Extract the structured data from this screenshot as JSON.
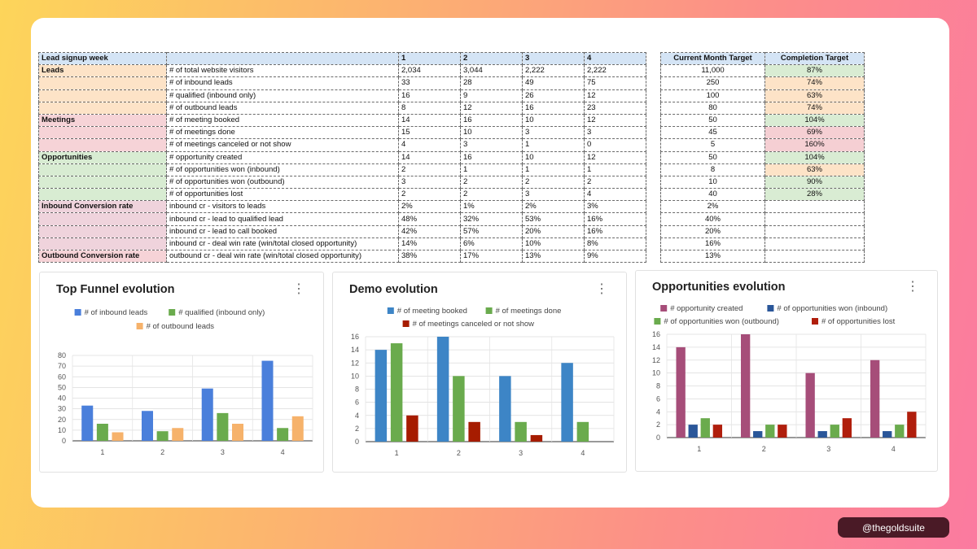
{
  "table": {
    "header": [
      "Lead signup week",
      "",
      "1",
      "2",
      "3",
      "4"
    ],
    "rows": [
      {
        "group": "Leads",
        "metric": "# of total website visitors",
        "w": [
          "2,034",
          "3,044",
          "2,222",
          "2,222"
        ]
      },
      {
        "group": "",
        "metric": "# of inbound leads",
        "w": [
          "33",
          "28",
          "49",
          "75"
        ]
      },
      {
        "group": "",
        "metric": "# qualified (inbound only)",
        "w": [
          "16",
          "9",
          "26",
          "12"
        ]
      },
      {
        "group": "",
        "metric": "# of outbound leads",
        "w": [
          "8",
          "12",
          "16",
          "23"
        ]
      },
      {
        "group": "Meetings",
        "metric": "# of meeting booked",
        "w": [
          "14",
          "16",
          "10",
          "12"
        ]
      },
      {
        "group": "",
        "metric": "# of meetings done",
        "w": [
          "15",
          "10",
          "3",
          "3"
        ]
      },
      {
        "group": "",
        "metric": "# of meetings canceled or not show",
        "w": [
          "4",
          "3",
          "1",
          "0"
        ]
      },
      {
        "group": "Opportunities",
        "metric": "# opportunity created",
        "w": [
          "14",
          "16",
          "10",
          "12"
        ]
      },
      {
        "group": "",
        "metric": "# of opportunities won (inbound)",
        "w": [
          "2",
          "1",
          "1",
          "1"
        ]
      },
      {
        "group": "",
        "metric": "# of opportunities won (outbound)",
        "w": [
          "3",
          "2",
          "2",
          "2"
        ]
      },
      {
        "group": "",
        "metric": "# of opportunities lost",
        "w": [
          "2",
          "2",
          "3",
          "4"
        ]
      },
      {
        "group": "Inbound Conversion rate",
        "metric": "inbound cr - visitors to leads",
        "w": [
          "2%",
          "1%",
          "2%",
          "3%"
        ]
      },
      {
        "group": "",
        "metric": "inbound cr - lead to qualified lead",
        "w": [
          "48%",
          "32%",
          "53%",
          "16%"
        ]
      },
      {
        "group": "",
        "metric": "inbound cr - lead to call booked",
        "w": [
          "42%",
          "57%",
          "20%",
          "16%"
        ]
      },
      {
        "group": "",
        "metric": "inbound cr - deal win rate (win/total closed opportunity)",
        "w": [
          "14%",
          "6%",
          "10%",
          "8%"
        ]
      },
      {
        "group": "Outbound Conversion rate",
        "metric": "outbound cr - deal win rate (win/total closed opportunity)",
        "w": [
          "38%",
          "17%",
          "13%",
          "9%"
        ]
      }
    ]
  },
  "targets": {
    "header": [
      "Current Month Target",
      "Completion Target"
    ],
    "rows": [
      {
        "target": "11,000",
        "completion": "87%"
      },
      {
        "target": "250",
        "completion": "74%"
      },
      {
        "target": "100",
        "completion": "63%"
      },
      {
        "target": "80",
        "completion": "74%"
      },
      {
        "target": "50",
        "completion": "104%"
      },
      {
        "target": "45",
        "completion": "69%"
      },
      {
        "target": "5",
        "completion": "160%"
      },
      {
        "target": "50",
        "completion": "104%"
      },
      {
        "target": "8",
        "completion": "63%"
      },
      {
        "target": "10",
        "completion": "90%"
      },
      {
        "target": "40",
        "completion": "28%"
      },
      {
        "target": "2%",
        "completion": ""
      },
      {
        "target": "40%",
        "completion": ""
      },
      {
        "target": "20%",
        "completion": ""
      },
      {
        "target": "16%",
        "completion": ""
      },
      {
        "target": "13%",
        "completion": ""
      }
    ]
  },
  "colors": {
    "blue": "#4a7fdb",
    "green": "#6aab4d",
    "orange": "#f6b26b",
    "blue2": "#3d85c6",
    "red": "#a61c00",
    "magenta": "#a64d79",
    "navy": "#2a5699",
    "brightred": "#b01e0c"
  },
  "chart_data": [
    {
      "type": "bar",
      "title": "Top Funnel evolution",
      "categories": [
        "1",
        "2",
        "3",
        "4"
      ],
      "ylim": [
        0,
        80
      ],
      "yticks": [
        0,
        10,
        20,
        30,
        40,
        50,
        60,
        70,
        80
      ],
      "series": [
        {
          "name": "# of inbound leads",
          "values": [
            33,
            28,
            49,
            75
          ],
          "color": "#4a7fdb"
        },
        {
          "name": "# qualified (inbound only)",
          "values": [
            16,
            9,
            26,
            12
          ],
          "color": "#6aab4d"
        },
        {
          "name": "# of outbound leads",
          "values": [
            8,
            12,
            16,
            23
          ],
          "color": "#f6b26b"
        }
      ]
    },
    {
      "type": "bar",
      "title": "Demo evolution",
      "categories": [
        "1",
        "2",
        "3",
        "4"
      ],
      "ylim": [
        0,
        16
      ],
      "yticks": [
        0,
        2,
        4,
        6,
        8,
        10,
        12,
        14,
        16
      ],
      "series": [
        {
          "name": "# of meeting booked",
          "values": [
            14,
            16,
            10,
            12
          ],
          "color": "#3d85c6"
        },
        {
          "name": "# of meetings done",
          "values": [
            15,
            10,
            3,
            3
          ],
          "color": "#6aab4d"
        },
        {
          "name": "# of meetings canceled or not show",
          "values": [
            4,
            3,
            1,
            0
          ],
          "color": "#a61c00"
        }
      ]
    },
    {
      "type": "bar",
      "title": "Opportunities evolution",
      "categories": [
        "1",
        "2",
        "3",
        "4"
      ],
      "ylim": [
        0,
        16
      ],
      "yticks": [
        0,
        2,
        4,
        6,
        8,
        10,
        12,
        14,
        16
      ],
      "series": [
        {
          "name": "# opportunity created",
          "values": [
            14,
            16,
            10,
            12
          ],
          "color": "#a64d79"
        },
        {
          "name": "# of opportunities won (inbound)",
          "values": [
            2,
            1,
            1,
            1
          ],
          "color": "#2a5699"
        },
        {
          "name": "# of opportunities won (outbound)",
          "values": [
            3,
            2,
            2,
            2
          ],
          "color": "#6aab4d"
        },
        {
          "name": "# of opportunities lost",
          "values": [
            2,
            2,
            3,
            4
          ],
          "color": "#b01e0c"
        }
      ]
    }
  ],
  "badge": "@thegoldsuite",
  "menu_glyph": "⋮"
}
